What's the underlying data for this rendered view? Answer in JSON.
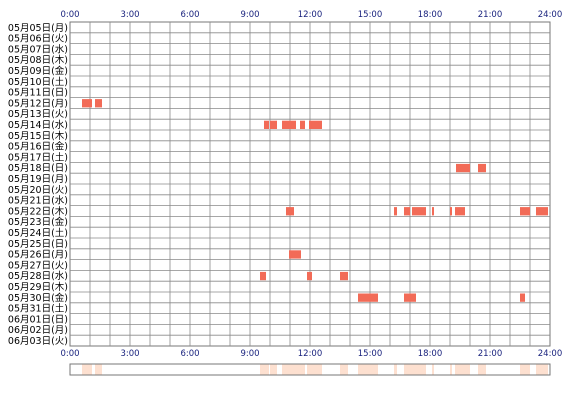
{
  "chart_data": {
    "type": "timeline",
    "x_unit": "hours",
    "xlim": [
      0,
      24
    ],
    "x_ticks": [
      "0:00",
      "3:00",
      "6:00",
      "9:00",
      "12:00",
      "15:00",
      "18:00",
      "21:00",
      "24:00"
    ],
    "rows": [
      "05月05日(月)",
      "05月06日(火)",
      "05月07日(水)",
      "05月08日(木)",
      "05月09日(金)",
      "05月10日(土)",
      "05月11日(日)",
      "05月12日(月)",
      "05月13日(火)",
      "05月14日(水)",
      "05月15日(木)",
      "05月16日(金)",
      "05月17日(土)",
      "05月18日(日)",
      "05月19日(月)",
      "05月20日(火)",
      "05月21日(水)",
      "05月22日(木)",
      "05月23日(金)",
      "05月24日(土)",
      "05月25日(日)",
      "05月26日(月)",
      "05月27日(火)",
      "05月28日(水)",
      "05月29日(木)",
      "05月30日(金)",
      "05月31日(土)",
      "06月01日(日)",
      "06月02日(月)",
      "06月03日(火)"
    ],
    "bars": [
      {
        "row": 7,
        "start": 0.6,
        "end": 1.1
      },
      {
        "row": 7,
        "start": 1.25,
        "end": 1.6
      },
      {
        "row": 9,
        "start": 9.7,
        "end": 9.95
      },
      {
        "row": 9,
        "start": 10.0,
        "end": 10.35
      },
      {
        "row": 9,
        "start": 10.6,
        "end": 11.3
      },
      {
        "row": 9,
        "start": 11.5,
        "end": 11.75
      },
      {
        "row": 9,
        "start": 11.95,
        "end": 12.6
      },
      {
        "row": 13,
        "start": 19.3,
        "end": 20.0
      },
      {
        "row": 13,
        "start": 20.4,
        "end": 20.8
      },
      {
        "row": 17,
        "start": 10.8,
        "end": 11.2
      },
      {
        "row": 17,
        "start": 16.2,
        "end": 16.35
      },
      {
        "row": 17,
        "start": 16.7,
        "end": 17.0
      },
      {
        "row": 17,
        "start": 17.1,
        "end": 17.8
      },
      {
        "row": 17,
        "start": 18.1,
        "end": 18.2
      },
      {
        "row": 17,
        "start": 19.0,
        "end": 19.1
      },
      {
        "row": 17,
        "start": 19.25,
        "end": 19.75
      },
      {
        "row": 17,
        "start": 22.5,
        "end": 23.0
      },
      {
        "row": 17,
        "start": 23.3,
        "end": 23.9
      },
      {
        "row": 21,
        "start": 10.95,
        "end": 11.55
      },
      {
        "row": 23,
        "start": 9.5,
        "end": 9.8
      },
      {
        "row": 23,
        "start": 11.85,
        "end": 12.1
      },
      {
        "row": 23,
        "start": 13.5,
        "end": 13.9
      },
      {
        "row": 25,
        "start": 14.4,
        "end": 15.4
      },
      {
        "row": 25,
        "start": 16.7,
        "end": 17.3
      },
      {
        "row": 25,
        "start": 22.5,
        "end": 22.75
      }
    ],
    "bar_color": "#f26b57",
    "summary_color": "#fde0d0",
    "grid": true
  }
}
